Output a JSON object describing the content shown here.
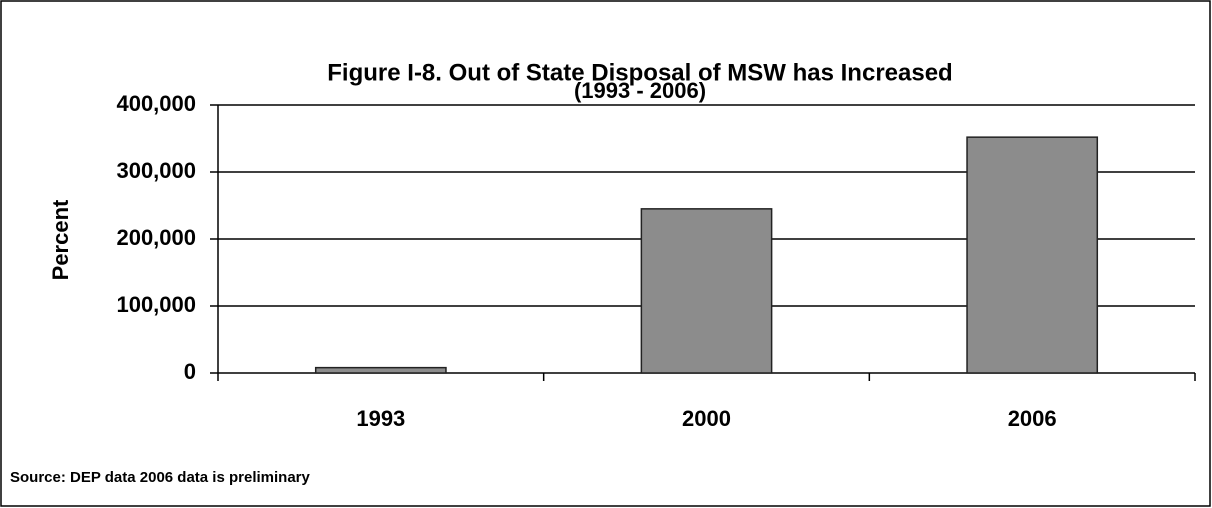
{
  "chart_data": {
    "type": "bar",
    "title": "Figure I-8.  Out of State Disposal of MSW has Increased",
    "subtitle": "(1993 - 2006)",
    "y_label": "Percent",
    "categories": [
      "1993",
      "2000",
      "2006"
    ],
    "values": [
      8000,
      245000,
      352000
    ],
    "color": "#8c8c8c",
    "ylim": [
      0,
      400000
    ],
    "yticks": [
      0,
      {
        "value": 100000,
        "label": "100,000"
      },
      {
        "value": 200000,
        "label": "200,000"
      },
      {
        "value": 300000,
        "label": "300,000"
      },
      {
        "value": 400000,
        "label": "400,000"
      }
    ],
    "grid": true,
    "source": "Source:  DEP data 2006 data is preliminary"
  }
}
